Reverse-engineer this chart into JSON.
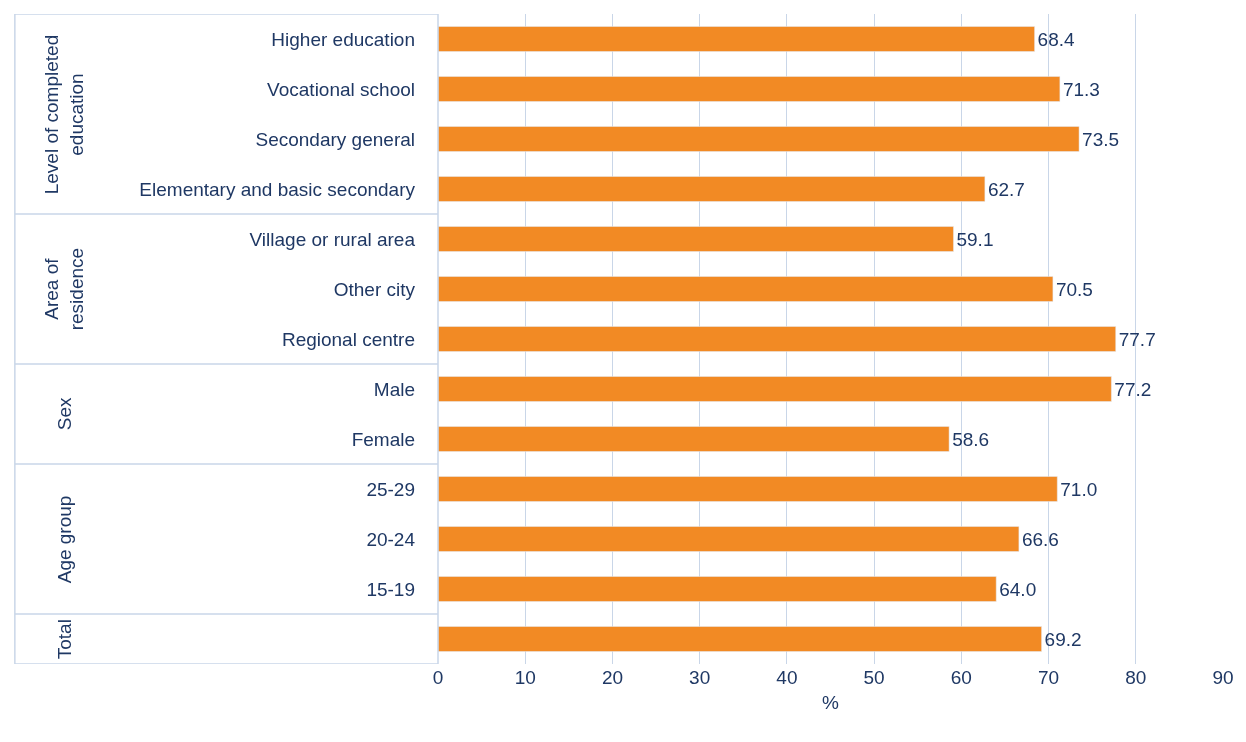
{
  "chart_data": {
    "type": "bar",
    "orientation": "horizontal",
    "xlabel": "%",
    "categories": [
      "Higher education",
      "Vocational school",
      "Secondary general",
      "Elementary and basic secondary",
      "Village or rural area",
      "Other city",
      "Regional centre",
      "Male",
      "Female",
      "25-29",
      "20-24",
      "15-19",
      null
    ],
    "values": [
      68.4,
      71.3,
      73.5,
      62.7,
      59.1,
      70.5,
      77.7,
      77.2,
      58.6,
      71.0,
      66.6,
      64.0,
      69.2
    ],
    "value_labels": [
      "68.4",
      "71.3",
      "73.5",
      "62.7",
      "59.1",
      "70.5",
      "77.7",
      "77.2",
      "58.6",
      "71.0",
      "66.6",
      "64.0",
      "69.2"
    ],
    "color": "#f28a24",
    "xlim": [
      0,
      90
    ],
    "xticks": [
      0,
      10,
      20,
      30,
      40,
      50,
      60,
      70,
      80,
      90
    ],
    "grid": "x",
    "legend": false,
    "annotations": [
      "Level of completed education",
      "Area of residence",
      "Sex",
      "Age group",
      "Total"
    ]
  }
}
